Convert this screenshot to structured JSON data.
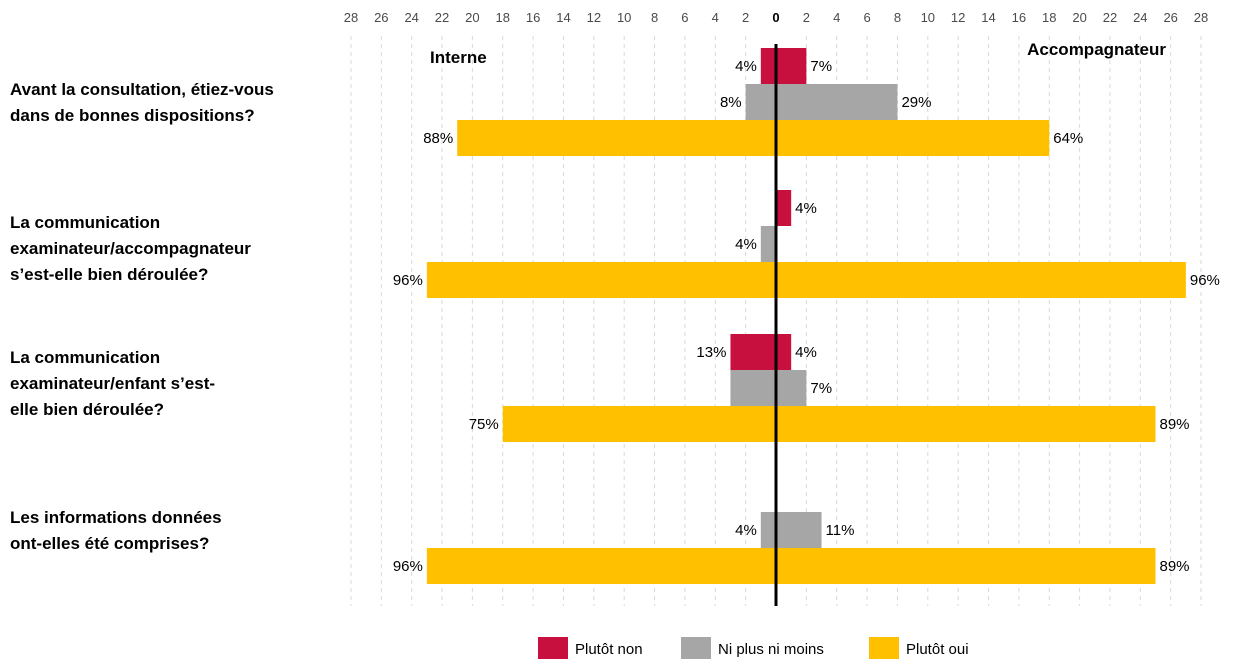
{
  "chart_data": {
    "type": "bar",
    "orientation": "horizontal-diverging",
    "side_labels": {
      "left": "Interne",
      "right": "Accompagnateur"
    },
    "x_ticks": [
      "28",
      "26",
      "24",
      "22",
      "20",
      "18",
      "16",
      "14",
      "12",
      "10",
      "8",
      "6",
      "4",
      "2",
      "0",
      "2",
      "4",
      "6",
      "8",
      "10",
      "12",
      "14",
      "16",
      "18",
      "20",
      "22",
      "24",
      "26",
      "28"
    ],
    "xlim": [
      -28,
      28
    ],
    "grid": true,
    "legend_position": "bottom",
    "series": [
      {
        "name": "Plutôt non",
        "color": "#c8103e"
      },
      {
        "name": "Ni plus ni moins",
        "color": "#a6a6a6"
      },
      {
        "name": "Plutôt oui",
        "color": "#ffc000"
      }
    ],
    "questions": [
      {
        "lines": [
          "Avant la consultation, étiez-vous",
          "dans de bonnes dispositions?"
        ],
        "bars": [
          {
            "series": 0,
            "left": 1,
            "right": 2,
            "left_label": "4%",
            "right_label": "7%"
          },
          {
            "series": 1,
            "left": 2,
            "right": 8,
            "left_label": "8%",
            "right_label": "29%"
          },
          {
            "series": 2,
            "left": 21,
            "right": 18,
            "left_label": "88%",
            "right_label": "64%"
          }
        ]
      },
      {
        "lines": [
          "La communication",
          "examinateur/accompagnateur",
          "s’est-elle bien déroulée?"
        ],
        "bars": [
          {
            "series": 0,
            "left": 0,
            "right": 1,
            "left_label": "",
            "right_label": "4%"
          },
          {
            "series": 1,
            "left": 1,
            "right": 0,
            "left_label": "4%",
            "right_label": ""
          },
          {
            "series": 2,
            "left": 23,
            "right": 27,
            "left_label": "96%",
            "right_label": "96%"
          }
        ]
      },
      {
        "lines": [
          "La communication",
          "examinateur/enfant s’est-",
          "elle bien déroulée?"
        ],
        "bars": [
          {
            "series": 0,
            "left": 3,
            "right": 1,
            "left_label": "13%",
            "right_label": "4%"
          },
          {
            "series": 1,
            "left": 3,
            "right": 2,
            "left_label": "",
            "right_label": "7%"
          },
          {
            "series": 2,
            "left": 18,
            "right": 25,
            "left_label": "75%",
            "right_label": "89%"
          }
        ]
      },
      {
        "lines": [
          "Les informations données",
          "ont-elles été comprises?"
        ],
        "bars": [
          {
            "series": 1,
            "left": 1,
            "right": 3,
            "left_label": "4%",
            "right_label": "11%"
          },
          {
            "series": 2,
            "left": 23,
            "right": 25,
            "left_label": "96%",
            "right_label": "89%"
          }
        ]
      }
    ]
  }
}
